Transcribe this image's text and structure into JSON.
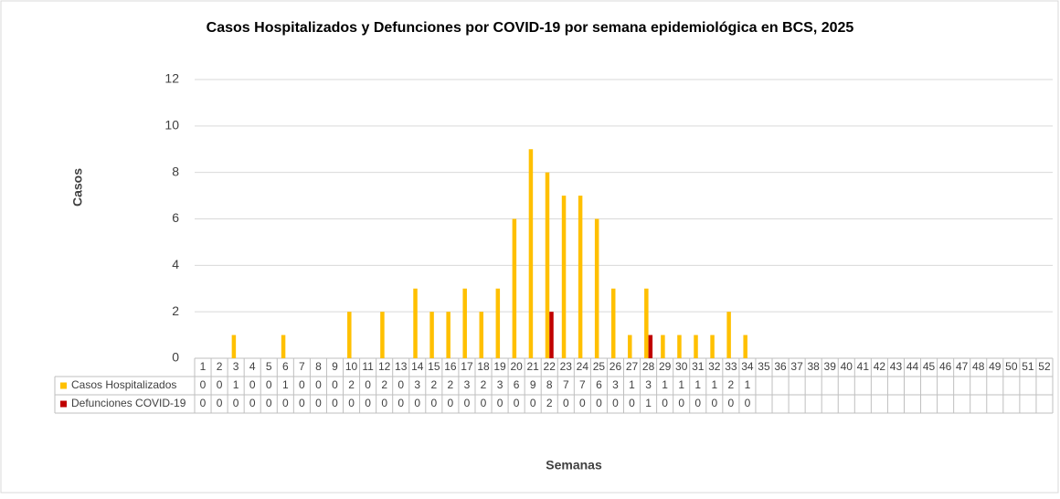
{
  "chart_data": {
    "type": "bar",
    "title": "Casos Hospitalizados y Defunciones por COVID-19 por semana epidemiológica en BCS, 2025",
    "y_label": "Casos",
    "x_label": "Semanas",
    "categories": [
      "1",
      "2",
      "3",
      "4",
      "5",
      "6",
      "7",
      "8",
      "9",
      "10",
      "11",
      "12",
      "13",
      "14",
      "15",
      "16",
      "17",
      "18",
      "19",
      "20",
      "21",
      "22",
      "23",
      "24",
      "25",
      "26",
      "27",
      "28",
      "29",
      "30",
      "31",
      "32",
      "33",
      "34",
      "35",
      "36",
      "37",
      "38",
      "39",
      "40",
      "41",
      "42",
      "43",
      "44",
      "45",
      "46",
      "47",
      "48",
      "49",
      "50",
      "51",
      "52"
    ],
    "series": [
      {
        "name": "Casos Hospitalizados",
        "color": "#ffc000",
        "values": [
          0,
          0,
          1,
          0,
          0,
          1,
          0,
          0,
          0,
          2,
          0,
          2,
          0,
          3,
          2,
          2,
          3,
          2,
          3,
          6,
          9,
          8,
          7,
          7,
          6,
          3,
          1,
          3,
          1,
          1,
          1,
          1,
          2,
          1,
          null,
          null,
          null,
          null,
          null,
          null,
          null,
          null,
          null,
          null,
          null,
          null,
          null,
          null,
          null,
          null,
          null,
          null
        ]
      },
      {
        "name": "Defunciones COVID-19",
        "color": "#c00000",
        "values": [
          0,
          0,
          0,
          0,
          0,
          0,
          0,
          0,
          0,
          0,
          0,
          0,
          0,
          0,
          0,
          0,
          0,
          0,
          0,
          0,
          0,
          2,
          0,
          0,
          0,
          0,
          0,
          1,
          0,
          0,
          0,
          0,
          0,
          0,
          null,
          null,
          null,
          null,
          null,
          null,
          null,
          null,
          null,
          null,
          null,
          null,
          null,
          null,
          null,
          null,
          null,
          null
        ]
      }
    ],
    "ylim": [
      0,
      12
    ],
    "yticks": [
      0,
      2,
      4,
      6,
      8,
      10,
      12
    ],
    "grid": true,
    "data_table": true
  }
}
